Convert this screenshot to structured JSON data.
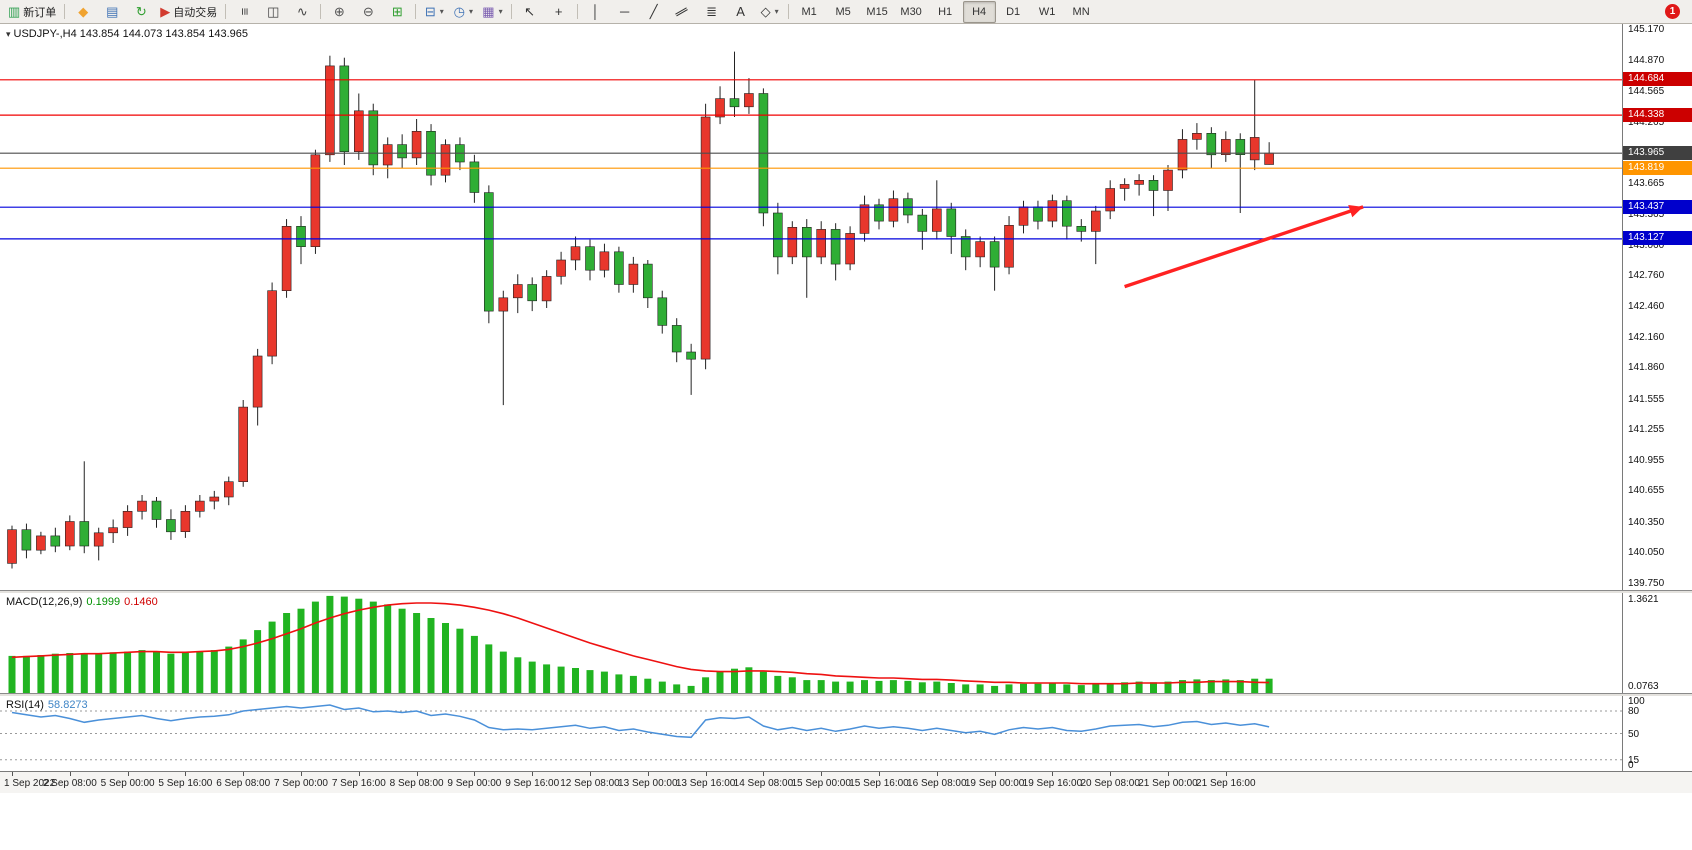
{
  "chart_ui": {
    "title_marker": "▾"
  },
  "theme": {
    "candle_up": "#e8372c",
    "candle_down": "#2fae35",
    "wick": "#222222",
    "macd_bar": "#21b421",
    "macd_signal": "#ee1111",
    "rsi_line": "#4a90d9",
    "toolbar_bg": "#f1efec",
    "notification_bg": "#e01818"
  },
  "toolbar": {
    "items": [
      {
        "kind": "button",
        "name": "new-order-button",
        "glyph": "▥",
        "color": "#2e9e4f",
        "label": "新订单"
      },
      {
        "kind": "sep"
      },
      {
        "kind": "icon",
        "name": "metaquotes-button",
        "glyph": "◆",
        "color": "#f0a330"
      },
      {
        "kind": "icon",
        "name": "profiles-button",
        "glyph": "▤",
        "color": "#3f72b5"
      },
      {
        "kind": "icon",
        "name": "refresh-button",
        "glyph": "↻",
        "color": "#2f9e2f"
      },
      {
        "kind": "button",
        "name": "auto-trading-button",
        "glyph": "▶",
        "color": "#d23b2f",
        "label": "自动交易"
      },
      {
        "kind": "sep"
      },
      {
        "kind": "icon",
        "name": "bar-chart-mode-button",
        "glyph": "≡",
        "rot": 90,
        "color": "#444444"
      },
      {
        "kind": "icon",
        "name": "candlestick-mode-button",
        "glyph": "◫",
        "color": "#444444"
      },
      {
        "kind": "icon",
        "name": "line-chart-mode-button",
        "glyph": "∿",
        "color": "#444444"
      },
      {
        "kind": "sep"
      },
      {
        "kind": "icon",
        "name": "zoom-in-button",
        "glyph": "⊕",
        "color": "#555555"
      },
      {
        "kind": "icon",
        "name": "zoom-out-button",
        "glyph": "⊖",
        "color": "#555555"
      },
      {
        "kind": "icon",
        "name": "tile-windows-button",
        "glyph": "⊞",
        "color": "#2f9e2f"
      },
      {
        "kind": "sep"
      },
      {
        "kind": "icon",
        "name": "indicators-button",
        "glyph": "⊟",
        "color": "#3f72b5",
        "dropdown": true
      },
      {
        "kind": "icon",
        "name": "periods-button",
        "glyph": "◷",
        "color": "#3f72b5",
        "dropdown": true
      },
      {
        "kind": "icon",
        "name": "templates-button",
        "glyph": "▦",
        "color": "#7a5cb0",
        "dropdown": true
      },
      {
        "kind": "sep"
      },
      {
        "kind": "icon",
        "name": "cursor-button",
        "glyph": "↖",
        "color": "#333333"
      },
      {
        "kind": "icon",
        "name": "crosshair-button",
        "glyph": "+",
        "color": "#333333"
      },
      {
        "kind": "sep"
      },
      {
        "kind": "icon",
        "name": "vertical-line-button",
        "glyph": "│",
        "color": "#333333"
      },
      {
        "kind": "icon",
        "name": "horizontal-line-button",
        "glyph": "─",
        "color": "#333333"
      },
      {
        "kind": "icon",
        "name": "trendline-button",
        "glyph": "╱",
        "color": "#333333"
      },
      {
        "kind": "icon",
        "name": "channel-button",
        "glyph": "∥",
        "rot": 60,
        "color": "#333333"
      },
      {
        "kind": "icon",
        "name": "fibonacci-button",
        "glyph": "≣",
        "color": "#333333"
      },
      {
        "kind": "icon",
        "name": "text-button",
        "glyph": "A",
        "color": "#333333"
      },
      {
        "kind": "icon",
        "name": "shapes-button",
        "glyph": "◇",
        "color": "#333333",
        "dropdown": true
      }
    ],
    "timeframes": [
      "M1",
      "M5",
      "M15",
      "M30",
      "H1",
      "H4",
      "D1",
      "W1",
      "MN"
    ],
    "active_timeframe": "H4",
    "notification_count": "1"
  },
  "chart_data": {
    "type": "candlestick",
    "symbol": "USDJPY-",
    "timeframe": "H4",
    "title": "USDJPY-,H4  143.854 144.073 143.854 143.965",
    "ohlc_current": {
      "open": "143.854",
      "high": "144.073",
      "low": "143.854",
      "close": "143.965"
    },
    "price_range": [
      139.69,
      145.23
    ],
    "price_axis_labels": [
      "145.170",
      "144.870",
      "144.565",
      "144.265",
      "143.965",
      "143.665",
      "143.365",
      "143.060",
      "142.760",
      "142.460",
      "142.160",
      "141.860",
      "141.555",
      "141.255",
      "140.955",
      "140.655",
      "140.350",
      "140.050",
      "139.750"
    ],
    "horizontal_lines": [
      {
        "price": 144.684,
        "color": "#f00000",
        "label": "144.684",
        "badge_bg": "#cc0000",
        "role": "resistance"
      },
      {
        "price": 144.338,
        "color": "#f00000",
        "label": "144.338",
        "badge_bg": "#cc0000",
        "role": "resistance"
      },
      {
        "price": 143.965,
        "color": "#4d4d4d",
        "label": "143.965",
        "badge_bg": "#404040",
        "role": "current-price"
      },
      {
        "price": 143.819,
        "color": "#ff9500",
        "label": "143.819",
        "badge_bg": "#ff9500",
        "role": "level"
      },
      {
        "price": 143.437,
        "color": "#0000dd",
        "label": "143.437",
        "badge_bg": "#0000cc",
        "role": "support"
      },
      {
        "price": 143.127,
        "color": "#0000dd",
        "label": "143.127",
        "badge_bg": "#0000cc",
        "role": "support"
      }
    ],
    "annotation_arrow": {
      "bar_start": 77,
      "price_start": 142.66,
      "bar_end": 93.5,
      "price_end": 143.44,
      "color": "#ff2222"
    },
    "x_labels": [
      {
        "i": 0,
        "t": "1 Sep 2022"
      },
      {
        "i": 4,
        "t": "2 Sep 08:00"
      },
      {
        "i": 8,
        "t": "5 Sep 00:00"
      },
      {
        "i": 12,
        "t": "5 Sep 16:00"
      },
      {
        "i": 16,
        "t": "6 Sep 08:00"
      },
      {
        "i": 20,
        "t": "7 Sep 00:00"
      },
      {
        "i": 24,
        "t": "7 Sep 16:00"
      },
      {
        "i": 28,
        "t": "8 Sep 08:00"
      },
      {
        "i": 32,
        "t": "9 Sep 00:00"
      },
      {
        "i": 36,
        "t": "9 Sep 16:00"
      },
      {
        "i": 40,
        "t": "12 Sep 08:00"
      },
      {
        "i": 44,
        "t": "13 Sep 00:00"
      },
      {
        "i": 48,
        "t": "13 Sep 16:00"
      },
      {
        "i": 52,
        "t": "14 Sep 08:00"
      },
      {
        "i": 56,
        "t": "15 Sep 00:00"
      },
      {
        "i": 60,
        "t": "15 Sep 16:00"
      },
      {
        "i": 64,
        "t": "16 Sep 08:00"
      },
      {
        "i": 68,
        "t": "19 Sep 00:00"
      },
      {
        "i": 72,
        "t": "19 Sep 16:00"
      },
      {
        "i": 76,
        "t": "20 Sep 08:00"
      },
      {
        "i": 80,
        "t": "21 Sep 00:00"
      },
      {
        "i": 84,
        "t": "21 Sep 16:00"
      }
    ],
    "candles": [
      [
        139.95,
        140.32,
        139.9,
        140.28
      ],
      [
        140.28,
        140.34,
        140.0,
        140.08
      ],
      [
        140.08,
        140.26,
        140.04,
        140.22
      ],
      [
        140.22,
        140.3,
        140.06,
        140.12
      ],
      [
        140.12,
        140.42,
        140.08,
        140.36
      ],
      [
        140.36,
        140.95,
        140.05,
        140.12
      ],
      [
        140.12,
        140.3,
        139.98,
        140.25
      ],
      [
        140.25,
        140.38,
        140.15,
        140.3
      ],
      [
        140.3,
        140.52,
        140.22,
        140.46
      ],
      [
        140.46,
        140.62,
        140.38,
        140.56
      ],
      [
        140.56,
        140.6,
        140.3,
        140.38
      ],
      [
        140.38,
        140.48,
        140.18,
        140.26
      ],
      [
        140.26,
        140.52,
        140.2,
        140.46
      ],
      [
        140.46,
        140.62,
        140.4,
        140.56
      ],
      [
        140.56,
        140.66,
        140.48,
        140.6
      ],
      [
        140.6,
        140.8,
        140.52,
        140.75
      ],
      [
        140.75,
        141.55,
        140.7,
        141.48
      ],
      [
        141.48,
        142.05,
        141.3,
        141.98
      ],
      [
        141.98,
        142.7,
        141.9,
        142.62
      ],
      [
        142.62,
        143.32,
        142.55,
        143.25
      ],
      [
        143.25,
        143.35,
        142.88,
        143.05
      ],
      [
        143.05,
        144.0,
        142.98,
        143.95
      ],
      [
        143.95,
        144.92,
        143.88,
        144.82
      ],
      [
        144.82,
        144.9,
        143.85,
        143.98
      ],
      [
        143.98,
        144.55,
        143.9,
        144.38
      ],
      [
        144.38,
        144.45,
        143.75,
        143.85
      ],
      [
        143.85,
        144.12,
        143.72,
        144.05
      ],
      [
        144.05,
        144.15,
        143.82,
        143.92
      ],
      [
        143.92,
        144.3,
        143.85,
        144.18
      ],
      [
        144.18,
        144.25,
        143.65,
        143.75
      ],
      [
        143.75,
        144.1,
        143.68,
        144.05
      ],
      [
        144.05,
        144.12,
        143.8,
        143.88
      ],
      [
        143.88,
        143.95,
        143.48,
        143.58
      ],
      [
        143.58,
        143.65,
        142.3,
        142.42
      ],
      [
        142.42,
        142.62,
        141.5,
        142.55
      ],
      [
        142.55,
        142.78,
        142.4,
        142.68
      ],
      [
        142.68,
        142.75,
        142.42,
        142.52
      ],
      [
        142.52,
        142.82,
        142.45,
        142.76
      ],
      [
        142.76,
        143.0,
        142.68,
        142.92
      ],
      [
        142.92,
        143.15,
        142.82,
        143.05
      ],
      [
        143.05,
        143.12,
        142.72,
        142.82
      ],
      [
        142.82,
        143.08,
        142.75,
        143.0
      ],
      [
        143.0,
        143.05,
        142.6,
        142.68
      ],
      [
        142.68,
        142.95,
        142.6,
        142.88
      ],
      [
        142.88,
        142.92,
        142.45,
        142.55
      ],
      [
        142.55,
        142.62,
        142.2,
        142.28
      ],
      [
        142.28,
        142.35,
        141.92,
        142.02
      ],
      [
        142.02,
        142.1,
        141.6,
        141.95
      ],
      [
        141.95,
        144.45,
        141.85,
        144.32
      ],
      [
        144.32,
        144.62,
        144.25,
        144.5
      ],
      [
        144.5,
        144.96,
        144.32,
        144.42
      ],
      [
        144.42,
        144.7,
        144.35,
        144.55
      ],
      [
        144.55,
        144.6,
        143.25,
        143.38
      ],
      [
        143.38,
        143.48,
        142.78,
        142.95
      ],
      [
        142.95,
        143.3,
        142.88,
        143.24
      ],
      [
        143.24,
        143.32,
        142.55,
        142.95
      ],
      [
        142.95,
        143.3,
        142.88,
        143.22
      ],
      [
        143.22,
        143.28,
        142.72,
        142.88
      ],
      [
        142.88,
        143.25,
        142.82,
        143.18
      ],
      [
        143.18,
        143.55,
        143.1,
        143.46
      ],
      [
        143.46,
        143.52,
        143.22,
        143.3
      ],
      [
        143.3,
        143.6,
        143.24,
        143.52
      ],
      [
        143.52,
        143.58,
        143.28,
        143.36
      ],
      [
        143.36,
        143.42,
        143.02,
        143.2
      ],
      [
        143.2,
        143.7,
        143.12,
        143.42
      ],
      [
        143.42,
        143.48,
        142.98,
        143.15
      ],
      [
        143.15,
        143.22,
        142.82,
        142.95
      ],
      [
        142.95,
        143.15,
        142.85,
        143.1
      ],
      [
        143.1,
        143.15,
        142.62,
        142.85
      ],
      [
        142.85,
        143.35,
        142.78,
        143.26
      ],
      [
        143.26,
        143.5,
        143.18,
        143.44
      ],
      [
        143.44,
        143.5,
        143.22,
        143.3
      ],
      [
        143.3,
        143.56,
        143.24,
        143.5
      ],
      [
        143.5,
        143.55,
        143.12,
        143.25
      ],
      [
        143.25,
        143.32,
        143.1,
        143.2
      ],
      [
        143.2,
        143.45,
        142.88,
        143.4
      ],
      [
        143.4,
        143.7,
        143.32,
        143.62
      ],
      [
        143.62,
        143.72,
        143.5,
        143.66
      ],
      [
        143.66,
        143.76,
        143.55,
        143.7
      ],
      [
        143.7,
        143.75,
        143.35,
        143.6
      ],
      [
        143.6,
        143.85,
        143.4,
        143.8
      ],
      [
        143.8,
        144.2,
        143.72,
        144.1
      ],
      [
        144.1,
        144.26,
        144.0,
        144.16
      ],
      [
        144.16,
        144.22,
        143.82,
        143.95
      ],
      [
        143.95,
        144.18,
        143.88,
        144.1
      ],
      [
        144.1,
        144.16,
        143.38,
        143.95
      ],
      [
        143.9,
        144.68,
        143.8,
        144.12
      ],
      [
        143.854,
        144.073,
        143.854,
        143.965
      ]
    ],
    "indicators": {
      "macd": {
        "label": "MACD(12,26,9)",
        "value_main": "0.1999",
        "value_signal": "0.1460",
        "scale_max_label": "1.3621",
        "scale_min_label": "0.0763",
        "scale_max": 1.4,
        "histogram": [
          0.52,
          0.52,
          0.53,
          0.55,
          0.56,
          0.55,
          0.56,
          0.57,
          0.58,
          0.6,
          0.58,
          0.55,
          0.56,
          0.58,
          0.6,
          0.65,
          0.75,
          0.88,
          1.0,
          1.12,
          1.18,
          1.28,
          1.36,
          1.35,
          1.32,
          1.28,
          1.24,
          1.18,
          1.12,
          1.05,
          0.98,
          0.9,
          0.8,
          0.68,
          0.58,
          0.5,
          0.44,
          0.4,
          0.37,
          0.35,
          0.32,
          0.3,
          0.26,
          0.24,
          0.2,
          0.16,
          0.12,
          0.1,
          0.22,
          0.3,
          0.34,
          0.36,
          0.3,
          0.24,
          0.22,
          0.18,
          0.18,
          0.16,
          0.16,
          0.18,
          0.17,
          0.18,
          0.17,
          0.15,
          0.16,
          0.14,
          0.12,
          0.12,
          0.1,
          0.12,
          0.13,
          0.13,
          0.14,
          0.12,
          0.11,
          0.12,
          0.14,
          0.15,
          0.16,
          0.15,
          0.16,
          0.18,
          0.19,
          0.18,
          0.19,
          0.18,
          0.2,
          0.2
        ],
        "signal": [
          0.5,
          0.51,
          0.52,
          0.53,
          0.54,
          0.55,
          0.55,
          0.56,
          0.57,
          0.58,
          0.58,
          0.57,
          0.57,
          0.58,
          0.59,
          0.61,
          0.65,
          0.7,
          0.76,
          0.83,
          0.9,
          0.98,
          1.05,
          1.11,
          1.16,
          1.2,
          1.23,
          1.25,
          1.26,
          1.26,
          1.25,
          1.23,
          1.2,
          1.16,
          1.11,
          1.05,
          0.98,
          0.91,
          0.84,
          0.77,
          0.7,
          0.64,
          0.58,
          0.52,
          0.47,
          0.42,
          0.37,
          0.33,
          0.31,
          0.3,
          0.3,
          0.31,
          0.31,
          0.3,
          0.29,
          0.27,
          0.26,
          0.24,
          0.23,
          0.22,
          0.21,
          0.21,
          0.2,
          0.19,
          0.19,
          0.18,
          0.17,
          0.16,
          0.15,
          0.15,
          0.14,
          0.14,
          0.14,
          0.14,
          0.13,
          0.13,
          0.13,
          0.13,
          0.14,
          0.14,
          0.14,
          0.15,
          0.15,
          0.16,
          0.16,
          0.16,
          0.15,
          0.146
        ]
      },
      "rsi": {
        "label": "RSI(14)",
        "value": "58.8273",
        "levels": [
          80,
          50,
          15
        ],
        "axis_labels": [
          "100",
          "80",
          "50",
          "15",
          "0"
        ],
        "values": [
          78,
          75,
          72,
          74,
          70,
          65,
          68,
          70,
          72,
          74,
          70,
          67,
          70,
          72,
          73,
          75,
          80,
          82,
          84,
          86,
          84,
          86,
          88,
          82,
          84,
          79,
          80,
          78,
          80,
          74,
          76,
          73,
          68,
          58,
          55,
          56,
          55,
          57,
          59,
          61,
          57,
          59,
          54,
          56,
          52,
          49,
          46,
          45,
          68,
          71,
          70,
          72,
          60,
          55,
          58,
          54,
          57,
          53,
          56,
          60,
          57,
          59,
          57,
          54,
          57,
          54,
          51,
          53,
          49,
          55,
          58,
          56,
          58,
          54,
          53,
          56,
          60,
          61,
          62,
          59,
          61,
          65,
          66,
          62,
          64,
          61,
          63,
          58.83
        ]
      }
    }
  }
}
